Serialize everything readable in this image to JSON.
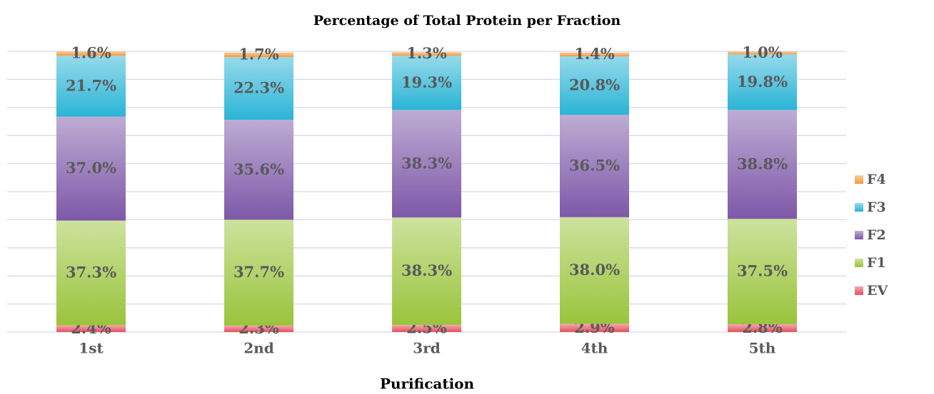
{
  "chart_data": {
    "type": "stacked_bar",
    "title": "Percentage of Total Protein per Fraction",
    "x_label": "Purification",
    "categories": [
      "1st",
      "2nd",
      "3rd",
      "4th",
      "5th"
    ],
    "series": [
      {
        "name": "EV",
        "color": "#e4505c",
        "values": [
          2.4,
          2.3,
          2.5,
          2.9,
          2.8
        ],
        "value_labels": [
          "2.4%",
          "2.3%",
          "2.5%",
          "2.9%",
          "2.8%"
        ]
      },
      {
        "name": "F1",
        "color": "#9ac43c",
        "values": [
          37.3,
          37.7,
          38.3,
          38.0,
          37.5
        ],
        "value_labels": [
          "37.3%",
          "37.7%",
          "38.3%",
          "38.0%",
          "37.5%"
        ]
      },
      {
        "name": "F2",
        "color": "#7d58a8",
        "values": [
          37.0,
          35.6,
          38.3,
          36.5,
          38.8
        ],
        "value_labels": [
          "37.0%",
          "35.6%",
          "38.3%",
          "36.5%",
          "38.8%"
        ]
      },
      {
        "name": "F3",
        "color": "#2ab4d6",
        "values": [
          21.7,
          22.3,
          19.3,
          20.8,
          19.8
        ],
        "value_labels": [
          "21.7%",
          "22.3%",
          "19.3%",
          "20.8%",
          "19.8%"
        ]
      },
      {
        "name": "F4",
        "color": "#f39a3e",
        "values": [
          1.6,
          1.7,
          1.3,
          1.4,
          1.0
        ],
        "value_labels": [
          "1.6%",
          "1.7%",
          "1.3%",
          "1.4%",
          "1.0%"
        ]
      }
    ],
    "ylim": [
      0,
      100
    ],
    "yticks": [
      0,
      10,
      20,
      30,
      40,
      50,
      60,
      70,
      80,
      90,
      100
    ],
    "tick_labels": false,
    "grid": true,
    "legend": "right"
  }
}
